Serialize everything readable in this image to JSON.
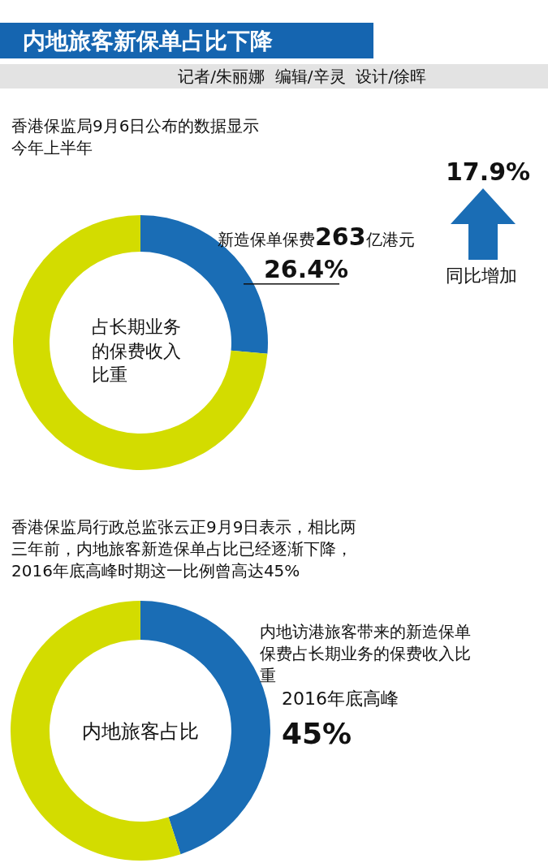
{
  "chart_data": [
    {
      "type": "donut",
      "title": "内地旅客新保单占比下降",
      "subtitle": "记者/朱丽娜  编辑/辛灵  设计/徐晖",
      "categories": [
        null,
        null
      ],
      "values": [
        26.4,
        73.6
      ],
      "colors": [
        "#1a6db5",
        "#d3dc00"
      ],
      "value_labels": [
        "26.4%",
        null
      ],
      "annotations": [
        "香港保监局9月6日公布的数据显示今年上半年",
        "新造保单保费263亿港元",
        "占长期业务的保费收入比重",
        "17.9%",
        "同比增加"
      ]
    },
    {
      "type": "donut",
      "categories": [
        null,
        null
      ],
      "values": [
        45,
        55
      ],
      "colors": [
        "#1a6db5",
        "#d3dc00"
      ],
      "value_labels": [
        "45%",
        null
      ],
      "annotations": [
        "香港保监局行政总监张云正9月9日表示，相比两三年前，内地旅客新造保单占比已经逐渐下降，2016年底高峰时期这一比例曾高达45%",
        "内地访港旅客带来的新造保单保费占长期业务的保费收入比重",
        "2016年底高峰",
        "内地旅客占比"
      ]
    }
  ]
}
